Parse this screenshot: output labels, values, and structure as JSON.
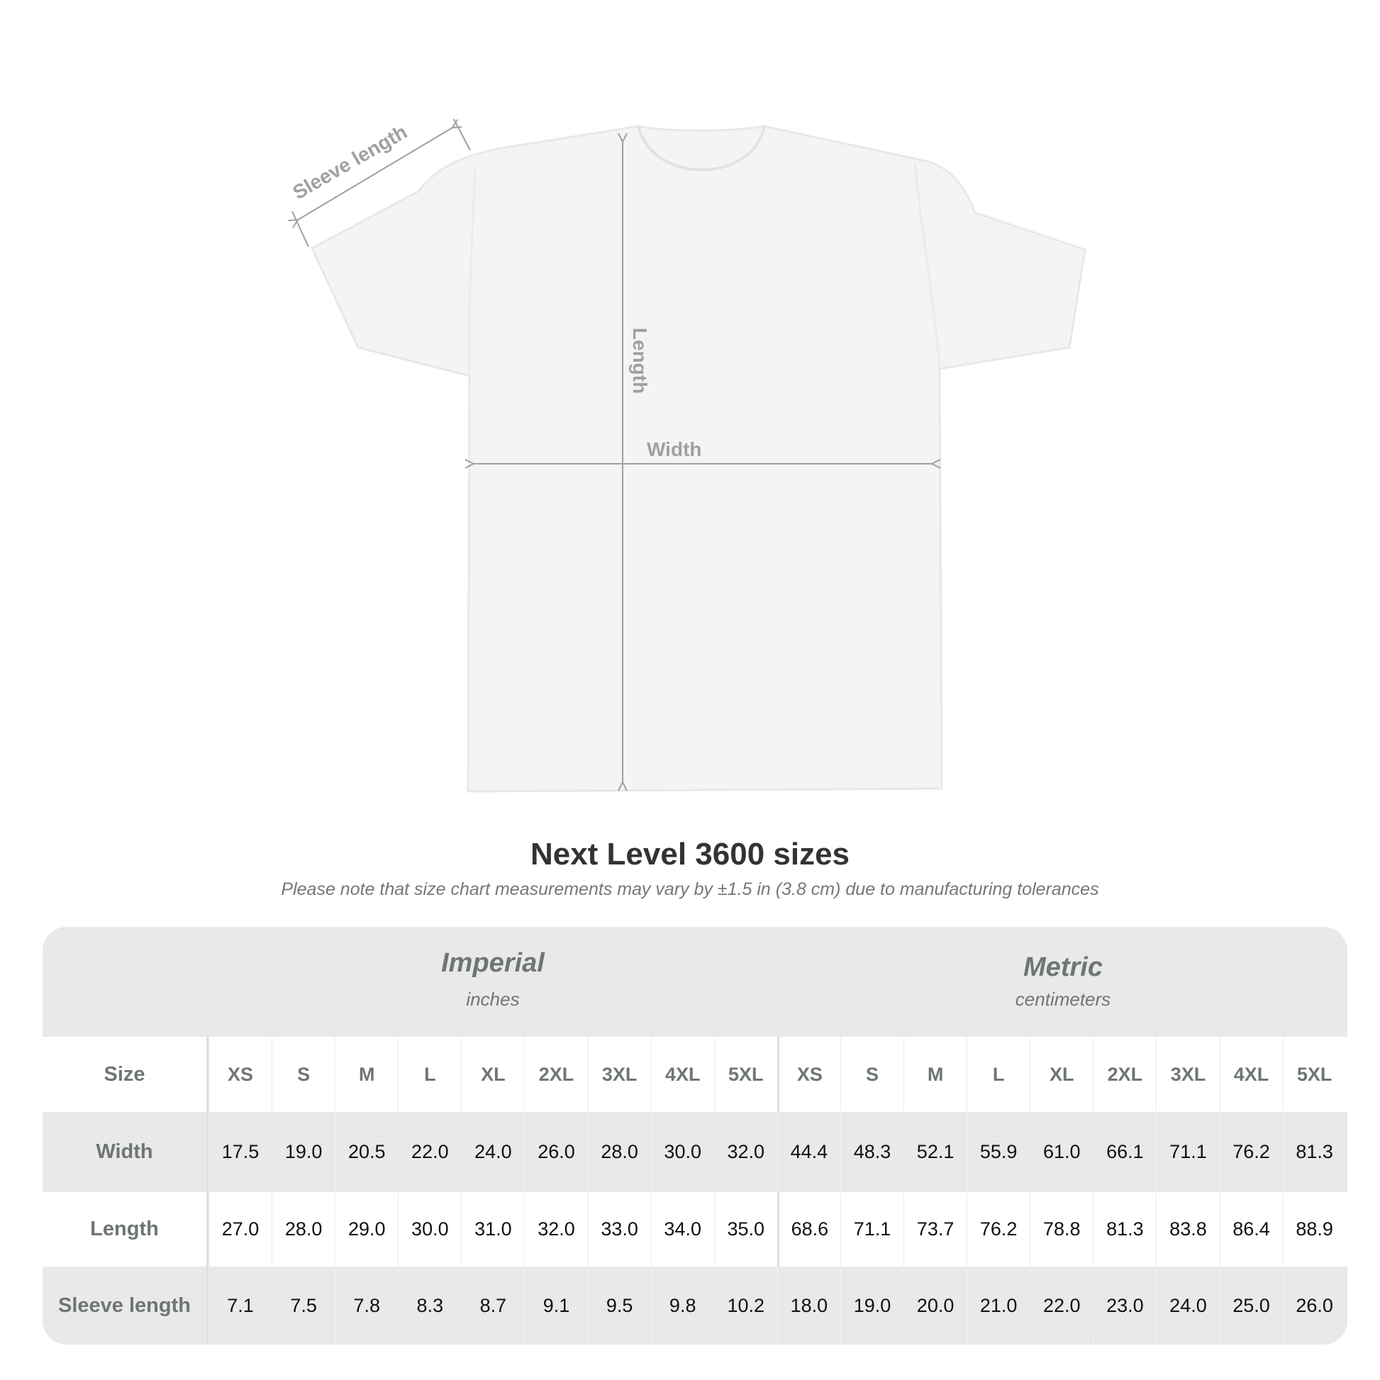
{
  "diagram": {
    "labels": {
      "sleeve": "Sleeve length",
      "length": "Length",
      "width": "Width"
    },
    "line_color": "#a0a0a0",
    "shirt_color": "#f4f4f4"
  },
  "title": "Next Level 3600 sizes",
  "subtitle": "Please note that size chart measurements may vary by ±1.5 in (3.8 cm) due to manufacturing tolerances",
  "table": {
    "imperial": {
      "name": "Imperial",
      "unit": "inches"
    },
    "metric": {
      "name": "Metric",
      "unit": "centimeters"
    },
    "size_label": "Size",
    "sizes": [
      "XS",
      "S",
      "M",
      "L",
      "XL",
      "2XL",
      "3XL",
      "4XL",
      "5XL"
    ],
    "rows": [
      {
        "label": "Width",
        "imperial": [
          "17.5",
          "19.0",
          "20.5",
          "22.0",
          "24.0",
          "26.0",
          "28.0",
          "30.0",
          "32.0"
        ],
        "metric": [
          "44.4",
          "48.3",
          "52.1",
          "55.9",
          "61.0",
          "66.1",
          "71.1",
          "76.2",
          "81.3"
        ]
      },
      {
        "label": "Length",
        "imperial": [
          "27.0",
          "28.0",
          "29.0",
          "30.0",
          "31.0",
          "32.0",
          "33.0",
          "34.0",
          "35.0"
        ],
        "metric": [
          "68.6",
          "71.1",
          "73.7",
          "76.2",
          "78.8",
          "81.3",
          "83.8",
          "86.4",
          "88.9"
        ]
      },
      {
        "label": "Sleeve length",
        "imperial": [
          "7.1",
          "7.5",
          "7.8",
          "8.3",
          "8.7",
          "9.1",
          "9.5",
          "9.8",
          "10.2"
        ],
        "metric": [
          "18.0",
          "19.0",
          "20.0",
          "21.0",
          "22.0",
          "23.0",
          "24.0",
          "25.0",
          "26.0"
        ]
      }
    ]
  }
}
